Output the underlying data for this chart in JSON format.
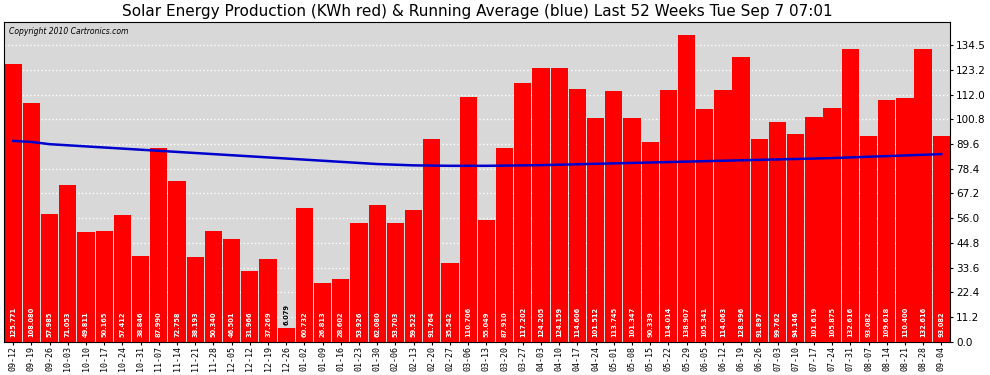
{
  "title": "Solar Energy Production (KWh red) & Running Average (blue) Last 52 Weeks Tue Sep 7 07:01",
  "copyright": "Copyright 2010 Cartronics.com",
  "bar_color": "#ff0000",
  "line_color": "#0000cc",
  "background_color": "#ffffff",
  "plot_bg_color": "#d8d8d8",
  "grid_color": "#ffffff",
  "title_fontsize": 11,
  "categories": [
    "09-12",
    "09-19",
    "09-26",
    "10-03",
    "10-10",
    "10-17",
    "10-24",
    "10-31",
    "11-07",
    "11-14",
    "11-21",
    "11-28",
    "12-05",
    "12-12",
    "12-19",
    "12-26",
    "01-02",
    "01-09",
    "01-16",
    "01-23",
    "01-30",
    "02-06",
    "02-13",
    "02-20",
    "02-27",
    "03-06",
    "03-13",
    "03-20",
    "03-27",
    "04-03",
    "04-10",
    "04-17",
    "04-24",
    "05-01",
    "05-08",
    "05-15",
    "05-22",
    "05-29",
    "06-05",
    "06-12",
    "06-19",
    "06-26",
    "07-03",
    "07-10",
    "07-17",
    "07-24",
    "07-31",
    "08-07",
    "08-14",
    "08-21",
    "08-28",
    "09-04"
  ],
  "values": [
    125.771,
    108.08,
    57.985,
    71.053,
    49.811,
    50.165,
    57.412,
    38.846,
    87.99,
    72.758,
    38.193,
    50.34,
    46.501,
    31.966,
    37.269,
    6.079,
    60.732,
    26.813,
    28.602,
    53.926,
    62.08,
    53.703,
    59.522,
    91.764,
    35.542,
    110.706,
    55.049,
    87.91,
    117.202,
    124.205,
    124.159,
    114.606,
    101.512,
    113.745,
    101.347,
    90.339,
    114.014,
    138.907,
    105.341,
    114.063,
    128.996,
    91.897,
    99.762,
    94.146,
    101.619,
    105.875,
    132.616,
    93.082,
    109.618,
    110.4,
    132.616,
    93.082
  ],
  "running_avg": [
    91.0,
    90.5,
    89.5,
    89.0,
    88.5,
    88.0,
    87.5,
    87.0,
    86.5,
    86.0,
    85.5,
    85.0,
    84.5,
    84.0,
    83.5,
    83.0,
    82.5,
    82.0,
    81.5,
    81.0,
    80.5,
    80.2,
    79.9,
    79.8,
    79.7,
    79.7,
    79.7,
    79.8,
    79.9,
    80.0,
    80.2,
    80.4,
    80.6,
    80.8,
    81.0,
    81.2,
    81.4,
    81.6,
    81.8,
    82.0,
    82.2,
    82.4,
    82.6,
    82.8,
    83.0,
    83.2,
    83.5,
    83.8,
    84.1,
    84.4,
    84.7,
    85.0
  ],
  "ylim": [
    0,
    145
  ],
  "yticks": [
    0.0,
    11.2,
    22.4,
    33.6,
    44.8,
    56.0,
    67.2,
    78.4,
    89.6,
    100.8,
    112.0,
    123.2,
    134.5
  ]
}
